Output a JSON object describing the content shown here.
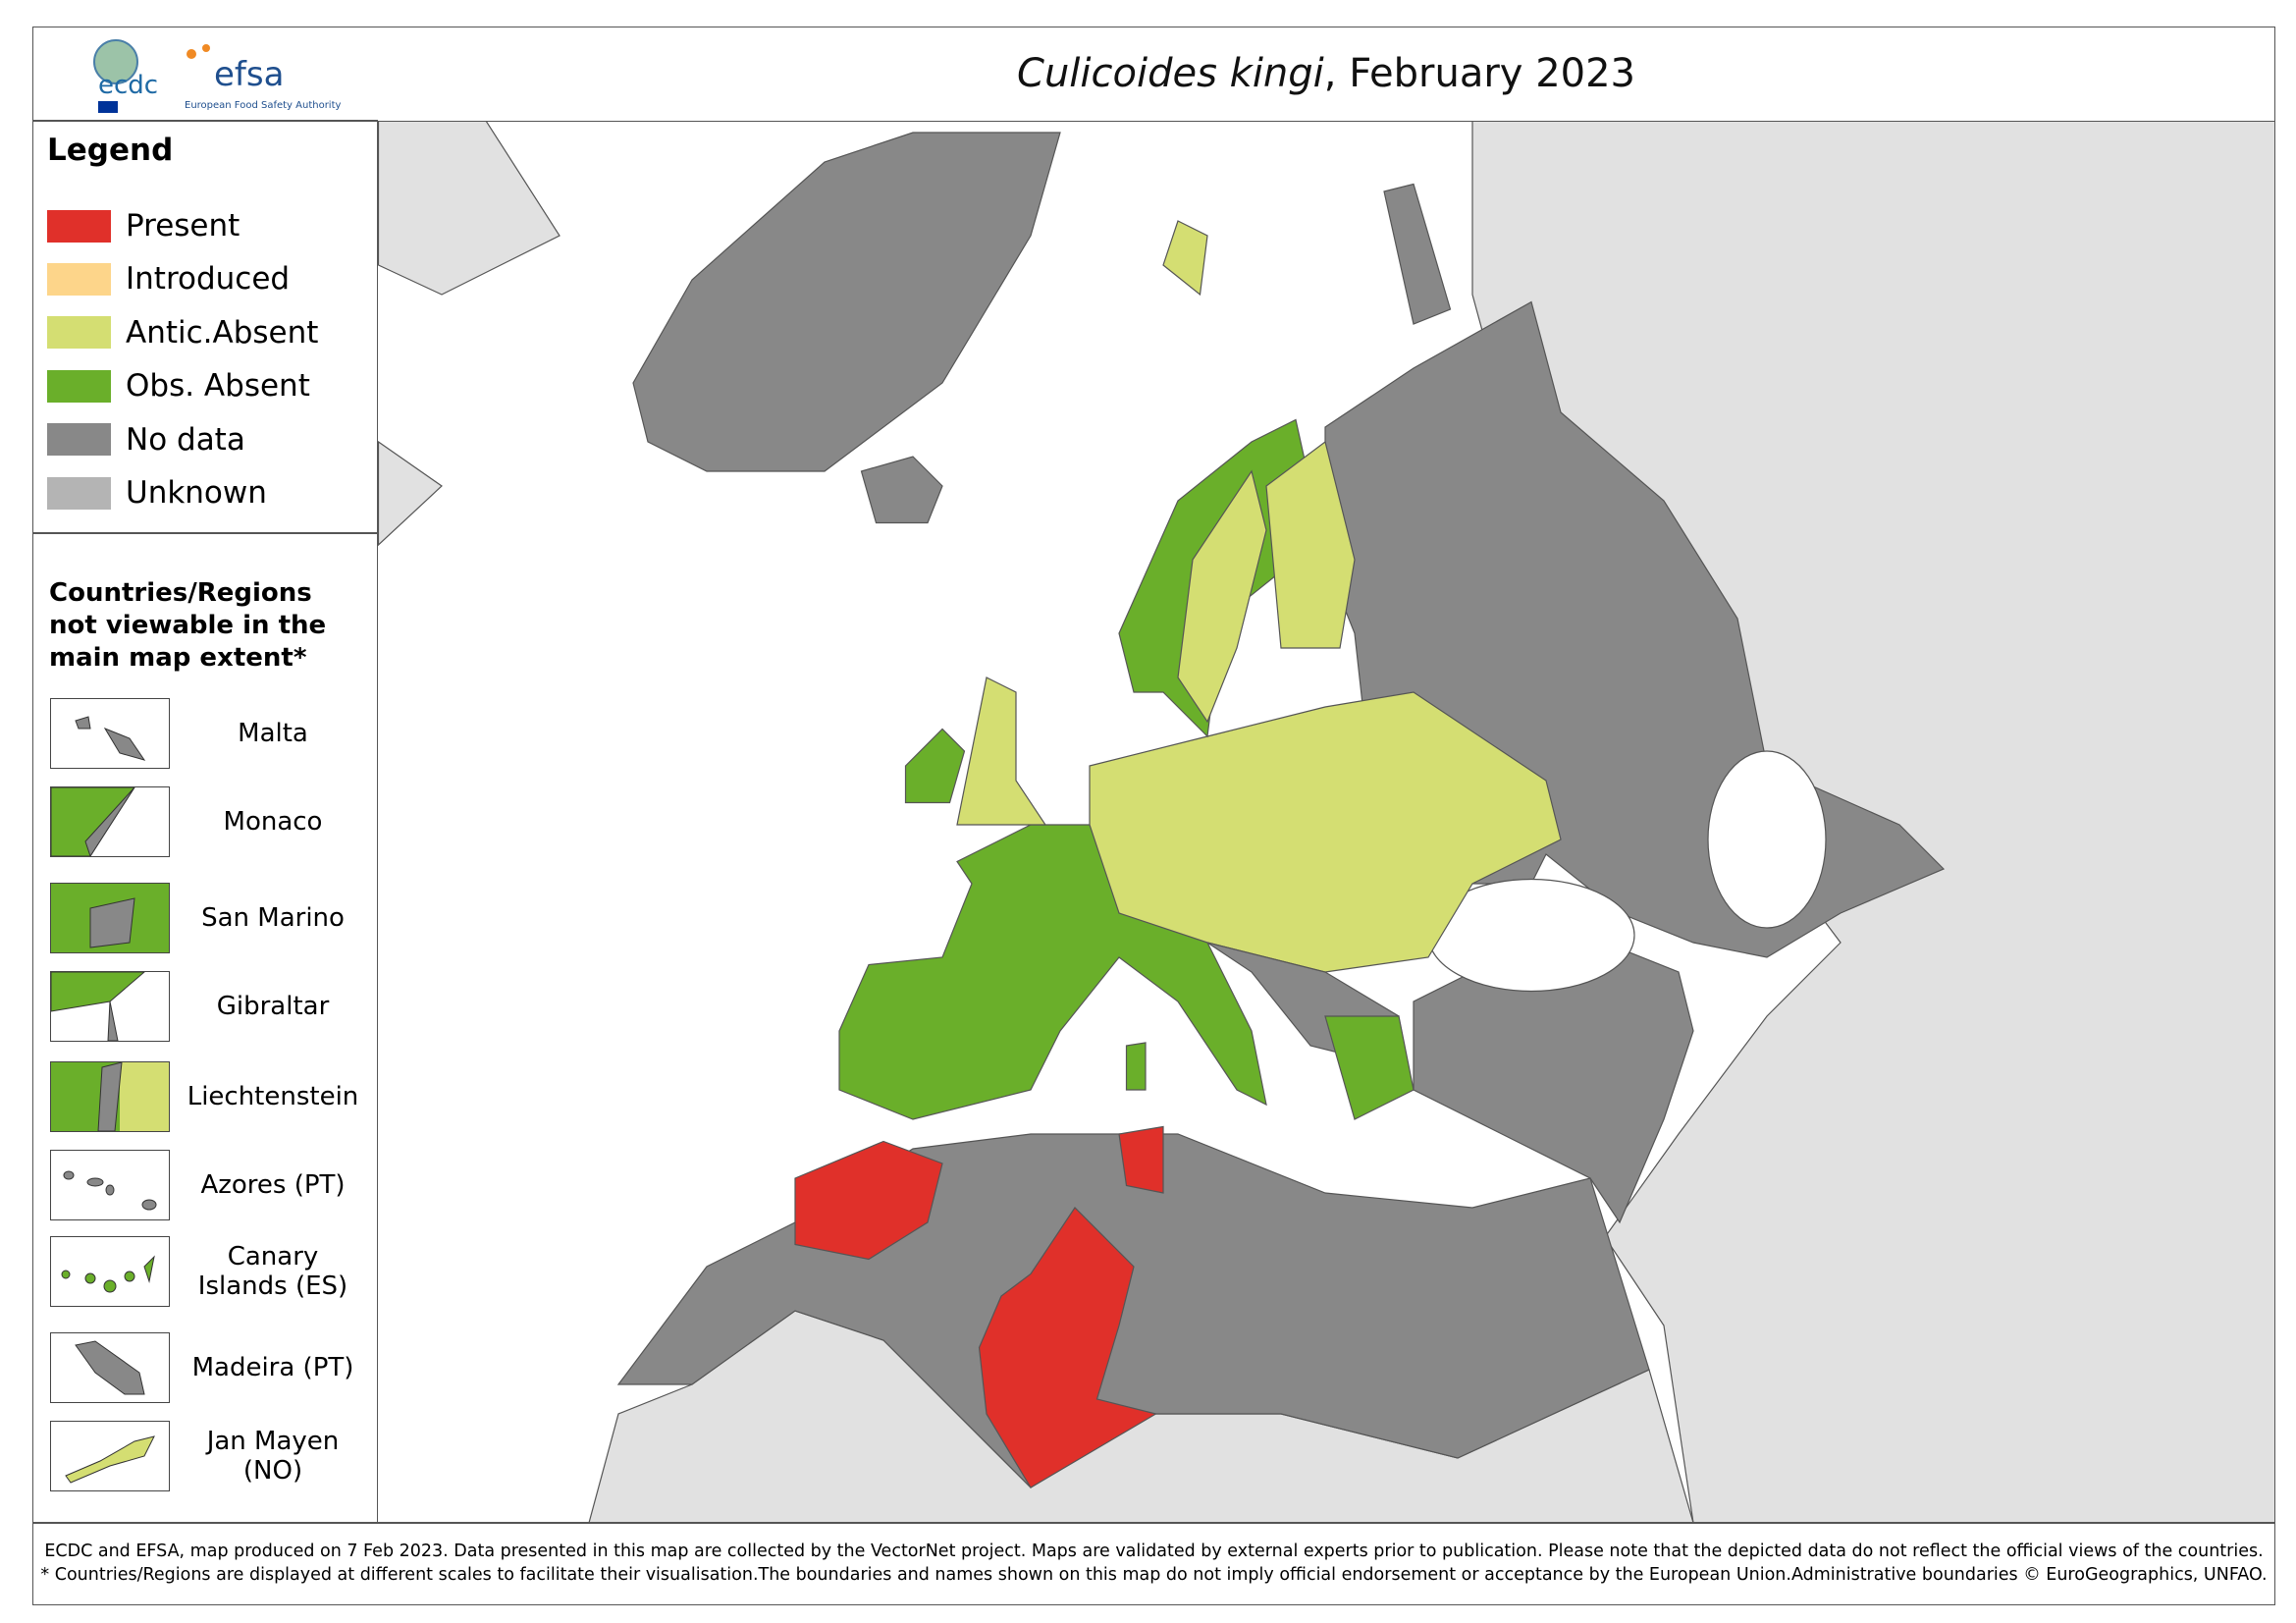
{
  "header": {
    "logos": {
      "ecdc": "ecdc",
      "efsa": "efsa",
      "efsa_subtitle": "European Food Safety Authority"
    },
    "title": {
      "species": "Culicoides kingi",
      "date": ", February 2023"
    }
  },
  "legend": {
    "title": "Legend",
    "items": [
      {
        "label": "Present",
        "color": "#e0302a"
      },
      {
        "label": "Introduced",
        "color": "#fdd58a"
      },
      {
        "label": "Antic.Absent",
        "color": "#d4de72"
      },
      {
        "label": "Obs. Absent",
        "color": "#6aaf2a"
      },
      {
        "label": "No data",
        "color": "#888888"
      },
      {
        "label": "Unknown",
        "color": "#b4b4b4"
      }
    ]
  },
  "insets": {
    "title": "Countries/Regions not viewable in the main map extent*",
    "items": [
      "Malta",
      "Monaco",
      "San Marino",
      "Gibraltar",
      "Liechtenstein",
      "Azores (PT)",
      "Canary Islands (ES)",
      "Madeira (PT)",
      "Jan Mayen (NO)"
    ]
  },
  "footer": {
    "lines": [
      "ECDC and EFSA, map produced on 7 Feb 2023. Data presented in this map are collected by the VectorNet project. Maps are validated by external experts prior to publication. Please note that the depicted data do not reflect the official views of the countries.",
      "* Countries/Regions are displayed at different scales to facilitate their visualisation.The boundaries and names shown on this map do not imply official endorsement or acceptance by the European Union.Administrative boundaries © EuroGeographics, UNFAO."
    ]
  }
}
